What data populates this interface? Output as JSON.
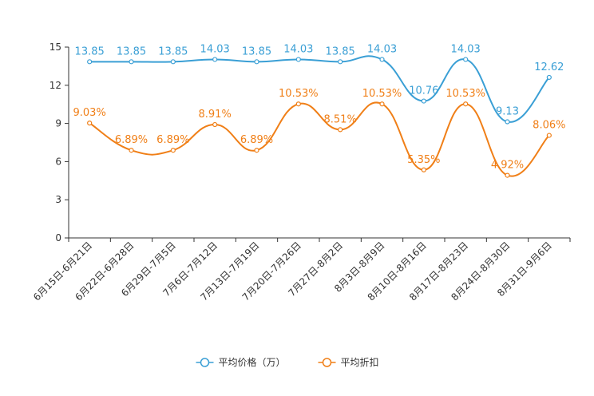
{
  "chart_data": {
    "type": "line",
    "title": "",
    "xlabel": "",
    "ylabel": "",
    "ylim": [
      0,
      15
    ],
    "yticks": [
      0,
      3,
      6,
      9,
      12,
      15
    ],
    "grid": false,
    "legend_position": "bottom-center",
    "categories": [
      "6月15日-6月21日",
      "6月22日-6月28日",
      "6月29日-7月5日",
      "7月6日-7月12日",
      "7月13日-7月19日",
      "7月20日-7月26日",
      "7月27日-8月2日",
      "8月3日-8月9日",
      "8月10日-8月16日",
      "8月17日-8月23日",
      "8月24日-8月30日",
      "8月31日-9月6日"
    ],
    "series": [
      {
        "name": "平均价格（万）",
        "color": "#3a9fd5",
        "values": [
          13.85,
          13.85,
          13.85,
          14.03,
          13.85,
          14.03,
          13.85,
          14.03,
          10.76,
          14.03,
          9.13,
          12.62
        ],
        "labels": [
          "13.85",
          "13.85",
          "13.85",
          "14.03",
          "13.85",
          "14.03",
          "13.85",
          "14.03",
          "10.76",
          "14.03",
          "9.13",
          "12.62"
        ]
      },
      {
        "name": "平均折扣",
        "color": "#f07f17",
        "values": [
          9.03,
          6.89,
          6.89,
          8.91,
          6.89,
          10.53,
          8.51,
          10.53,
          5.35,
          10.53,
          4.92,
          8.06
        ],
        "labels": [
          "9.03%",
          "6.89%",
          "6.89%",
          "8.91%",
          "6.89%",
          "10.53%",
          "8.51%",
          "10.53%",
          "5.35%",
          "10.53%",
          "4.92%",
          "8.06%"
        ]
      }
    ]
  }
}
